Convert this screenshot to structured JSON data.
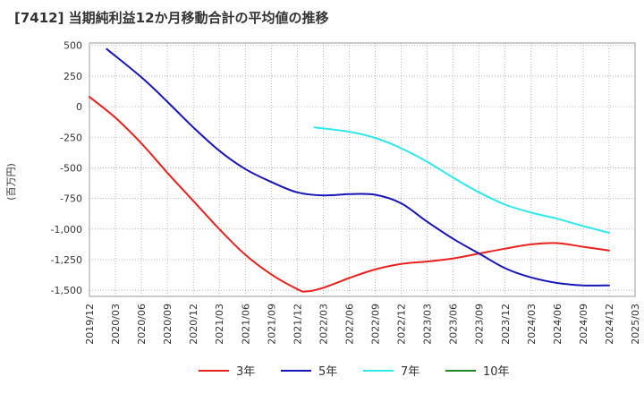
{
  "chart_data": {
    "type": "line",
    "title": "[7412]  当期純利益12か月移動合計の平均値の推移",
    "ylabel": "(百万円)",
    "xlabel": "",
    "ylim": [
      -1550,
      520
    ],
    "yticks": [
      500,
      250,
      0,
      -250,
      -500,
      -750,
      -1000,
      -1250,
      -1500
    ],
    "ytick_labels": [
      "500",
      "250",
      "0",
      "-250",
      "-500",
      "-750",
      "-1,000",
      "-1,250",
      "-1,500"
    ],
    "xlim": [
      "2019-12",
      "2025-03"
    ],
    "xticks": [
      "2019/12",
      "2020/03",
      "2020/06",
      "2020/09",
      "2020/12",
      "2021/03",
      "2021/06",
      "2021/09",
      "2021/12",
      "2022/03",
      "2022/06",
      "2022/09",
      "2022/12",
      "2023/03",
      "2023/06",
      "2023/09",
      "2023/12",
      "2024/03",
      "2024/06",
      "2024/09",
      "2024/12",
      "2025/03"
    ],
    "grid": true,
    "legend_position": "bottom",
    "series": [
      {
        "name": "3年",
        "color": "#e8211c",
        "points": [
          [
            "2019-12",
            80
          ],
          [
            "2020-03",
            -90
          ],
          [
            "2020-06",
            -300
          ],
          [
            "2020-09",
            -540
          ],
          [
            "2020-12",
            -770
          ],
          [
            "2021-03",
            -1000
          ],
          [
            "2021-06",
            -1210
          ],
          [
            "2021-09",
            -1370
          ],
          [
            "2021-12",
            -1490
          ],
          [
            "2022-01",
            -1510
          ],
          [
            "2022-03",
            -1480
          ],
          [
            "2022-06",
            -1400
          ],
          [
            "2022-09",
            -1330
          ],
          [
            "2022-12",
            -1285
          ],
          [
            "2023-03",
            -1265
          ],
          [
            "2023-06",
            -1240
          ],
          [
            "2023-09",
            -1200
          ],
          [
            "2023-12",
            -1160
          ],
          [
            "2024-03",
            -1125
          ],
          [
            "2024-06",
            -1115
          ],
          [
            "2024-09",
            -1145
          ],
          [
            "2024-12",
            -1175
          ]
        ]
      },
      {
        "name": "5年",
        "color": "#1515b8",
        "points": [
          [
            "2020-02",
            470
          ],
          [
            "2020-06",
            240
          ],
          [
            "2020-09",
            40
          ],
          [
            "2020-12",
            -170
          ],
          [
            "2021-03",
            -360
          ],
          [
            "2021-06",
            -510
          ],
          [
            "2021-09",
            -615
          ],
          [
            "2021-12",
            -700
          ],
          [
            "2022-03",
            -725
          ],
          [
            "2022-06",
            -715
          ],
          [
            "2022-09",
            -720
          ],
          [
            "2022-12",
            -790
          ],
          [
            "2023-03",
            -940
          ],
          [
            "2023-06",
            -1080
          ],
          [
            "2023-09",
            -1200
          ],
          [
            "2023-12",
            -1320
          ],
          [
            "2024-03",
            -1395
          ],
          [
            "2024-06",
            -1440
          ],
          [
            "2024-09",
            -1460
          ],
          [
            "2024-12",
            -1460
          ]
        ]
      },
      {
        "name": "7年",
        "color": "#2ee8ee",
        "points": [
          [
            "2022-02",
            -170
          ],
          [
            "2022-06",
            -205
          ],
          [
            "2022-09",
            -255
          ],
          [
            "2022-12",
            -340
          ],
          [
            "2023-03",
            -450
          ],
          [
            "2023-06",
            -580
          ],
          [
            "2023-09",
            -700
          ],
          [
            "2023-12",
            -800
          ],
          [
            "2024-03",
            -865
          ],
          [
            "2024-06",
            -915
          ],
          [
            "2024-09",
            -975
          ],
          [
            "2024-12",
            -1030
          ]
        ]
      },
      {
        "name": "10年",
        "color": "#1f8a1f",
        "points": []
      }
    ]
  }
}
